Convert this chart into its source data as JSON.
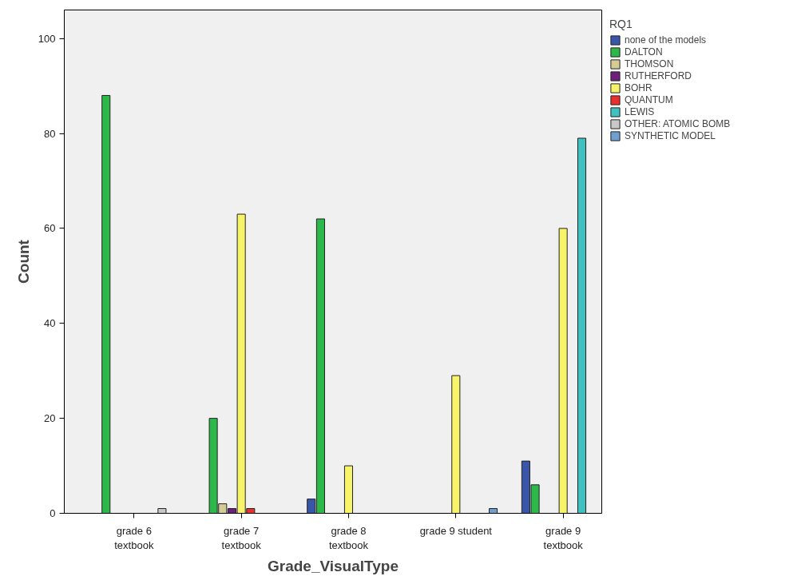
{
  "chart_data": {
    "type": "bar",
    "xlabel": "Grade_VisualType",
    "ylabel": "Count",
    "legend_title": "RQ1",
    "legend": "right",
    "grid": false,
    "categories": [
      "grade 6\ntextbook",
      "grade 7\ntextbook",
      "grade 8\ntextbook",
      "grade 9 student",
      "grade 9\ntextbook"
    ],
    "ylim": [
      0,
      106
    ],
    "yticks": [
      0,
      20,
      40,
      60,
      80,
      100
    ],
    "series": [
      {
        "name": "none of the models",
        "color": "#3a56a8",
        "values": [
          null,
          null,
          3,
          null,
          11
        ]
      },
      {
        "name": "DALTON",
        "color": "#2db84a",
        "values": [
          88,
          20,
          62,
          null,
          6
        ]
      },
      {
        "name": "THOMSON",
        "color": "#d4cc94",
        "values": [
          null,
          2,
          null,
          null,
          null
        ]
      },
      {
        "name": "RUTHERFORD",
        "color": "#6f1f7a",
        "values": [
          null,
          1,
          null,
          null,
          null
        ]
      },
      {
        "name": "BOHR",
        "color": "#f8f46a",
        "values": [
          null,
          63,
          10,
          29,
          60
        ]
      },
      {
        "name": "QUANTUM",
        "color": "#e83030",
        "values": [
          null,
          1,
          null,
          null,
          null
        ]
      },
      {
        "name": "LEWIS",
        "color": "#40c0c0",
        "values": [
          null,
          null,
          null,
          null,
          79
        ]
      },
      {
        "name": "OTHER: ATOMIC BOMB",
        "color": "#c8c8c8",
        "values": [
          1,
          null,
          null,
          null,
          null
        ]
      },
      {
        "name": "SYNTHETIC MODEL",
        "color": "#6fa0d0",
        "values": [
          null,
          null,
          null,
          1,
          null
        ]
      }
    ]
  }
}
